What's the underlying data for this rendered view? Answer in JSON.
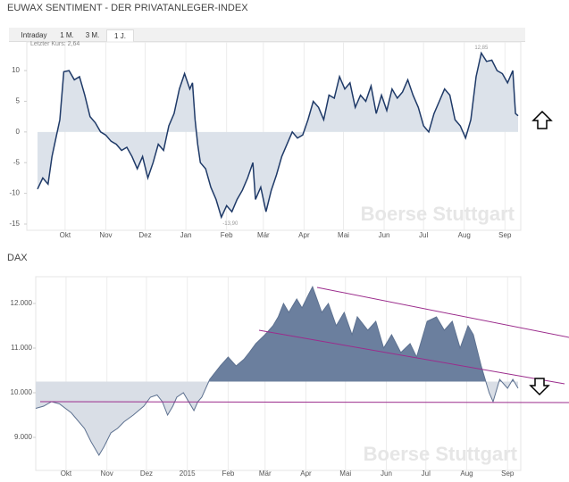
{
  "chart_data": [
    {
      "type": "area",
      "title": "EUWAX SENTIMENT - DER PRIVATANLEGER-INDEX",
      "tabs": [
        "Intraday",
        "1 M.",
        "3 M.",
        "1 J."
      ],
      "active_tab": 3,
      "last_price_label": "Letzter Kurs: 2,64",
      "max_label": "12,85",
      "min_label": "-13,90",
      "watermark": "Boerse Stuttgart",
      "x": [
        0,
        4,
        8,
        11,
        14,
        17,
        20,
        24,
        28,
        32,
        36,
        40,
        44,
        48,
        52,
        56,
        60,
        64,
        68,
        72,
        76,
        80,
        84,
        88,
        92,
        96,
        100,
        104,
        108,
        112,
        116,
        118,
        120,
        122,
        124,
        128,
        132,
        136,
        140,
        144,
        148,
        152,
        156,
        160,
        164,
        166,
        170,
        174,
        178,
        182,
        186,
        190,
        194,
        198,
        202,
        206,
        210,
        214,
        218,
        222,
        226,
        230,
        234,
        238,
        242,
        246,
        250,
        254,
        258,
        262,
        266,
        270,
        274,
        278,
        282,
        286,
        290,
        294,
        298,
        302,
        306,
        310,
        314,
        318,
        322,
        326,
        330,
        334,
        338,
        342,
        346,
        350,
        354,
        358,
        362,
        364,
        366
      ],
      "series": [
        {
          "color": "#1f3a68",
          "values": [
            -9.3,
            -7.5,
            -8.5,
            -4,
            -1,
            2,
            9.8,
            10,
            8.5,
            9,
            6,
            2.5,
            1.5,
            0,
            -0.5,
            -1.5,
            -2,
            -3,
            -2.5,
            -4,
            -6,
            -4,
            -7.5,
            -5,
            -2,
            -3,
            1,
            3,
            7,
            9.5,
            7,
            8,
            2,
            -2,
            -5,
            -6,
            -9,
            -11,
            -13.9,
            -12,
            -13,
            -11,
            -9.5,
            -7.5,
            -5,
            -11,
            -9,
            -13,
            -9.5,
            -7,
            -4,
            -2,
            0,
            -1,
            -0.5,
            2,
            5,
            4,
            2,
            6,
            5.5,
            9,
            7,
            8,
            4,
            6,
            5,
            7.5,
            3,
            6,
            3.5,
            7,
            5.5,
            6.5,
            8.5,
            6,
            4,
            1,
            0,
            3,
            5,
            7,
            6,
            2,
            1,
            -1,
            2,
            9,
            12.85,
            11.5,
            11.7,
            10,
            9.5,
            8,
            10,
            3,
            2.64
          ]
        }
      ],
      "fill_base": 0,
      "fill_colors": [
        "#dce2ea",
        "#dce2ea"
      ],
      "xlim": [
        0,
        366
      ],
      "xticks": [
        {
          "value": 21,
          "label": "Okt"
        },
        {
          "value": 52,
          "label": "Nov"
        },
        {
          "value": 82,
          "label": "Dez"
        },
        {
          "value": 113,
          "label": "Jan"
        },
        {
          "value": 144,
          "label": "Feb"
        },
        {
          "value": 172,
          "label": "Mär"
        },
        {
          "value": 203,
          "label": "Apr"
        },
        {
          "value": 233,
          "label": "Mai"
        },
        {
          "value": 264,
          "label": "Jun"
        },
        {
          "value": 294,
          "label": "Jul"
        },
        {
          "value": 325,
          "label": "Aug"
        },
        {
          "value": 356,
          "label": "Sep"
        }
      ],
      "ylim": [
        -15,
        13.5
      ],
      "yticks": [
        -15,
        -10,
        -5,
        0,
        5,
        10
      ],
      "grid": true
    },
    {
      "type": "area",
      "title": "DAX",
      "watermark": "Boerse Stuttgart",
      "x": [
        -2,
        4,
        10,
        16,
        25,
        35,
        40,
        46,
        50,
        55,
        60,
        65,
        72,
        80,
        85,
        90,
        94,
        98,
        102,
        105,
        110,
        118,
        121,
        124,
        130,
        138,
        144,
        150,
        156,
        160,
        165,
        172,
        178,
        182,
        186,
        190,
        196,
        200,
        205,
        208,
        215,
        220,
        226,
        232,
        238,
        242,
        250,
        256,
        262,
        268,
        275,
        282,
        287,
        295,
        302,
        308,
        314,
        320,
        326,
        330,
        336,
        342,
        345,
        350,
        356,
        360,
        364
      ],
      "series": [
        {
          "color": "#5d7190",
          "values": [
            9650,
            9700,
            9800,
            9750,
            9550,
            9200,
            8900,
            8600,
            8800,
            9100,
            9200,
            9350,
            9500,
            9700,
            9900,
            9950,
            9800,
            9500,
            9700,
            9900,
            10000,
            9600,
            9800,
            9900,
            10300,
            10600,
            10800,
            10600,
            10750,
            10900,
            11100,
            11300,
            11500,
            11700,
            12000,
            11800,
            12100,
            11900,
            12200,
            12374,
            11800,
            12000,
            11500,
            11800,
            11300,
            11700,
            11400,
            11600,
            11000,
            11300,
            10900,
            11100,
            10800,
            11600,
            11700,
            11400,
            11600,
            11000,
            11500,
            11300,
            10600,
            10000,
            9800,
            10300,
            10100,
            10300,
            10100
          ]
        }
      ],
      "fill_base": 10250,
      "fill_colors": [
        "#6b7f9e",
        "#d9dee6"
      ],
      "xlim": [
        -2,
        366
      ],
      "xticks": [
        {
          "value": 21,
          "label": "Okt"
        },
        {
          "value": 52,
          "label": "Nov"
        },
        {
          "value": 82,
          "label": "Dez"
        },
        {
          "value": 113,
          "label": "2015"
        },
        {
          "value": 144,
          "label": "Feb"
        },
        {
          "value": 172,
          "label": "Mär"
        },
        {
          "value": 203,
          "label": "Apr"
        },
        {
          "value": 233,
          "label": "Mai"
        },
        {
          "value": 264,
          "label": "Jun"
        },
        {
          "value": 294,
          "label": "Jul"
        },
        {
          "value": 325,
          "label": "Aug"
        },
        {
          "value": 356,
          "label": "Sep"
        }
      ],
      "ylim": [
        8260,
        12600
      ],
      "yticks": [
        {
          "value": 9000,
          "label": "9.000"
        },
        {
          "value": 10000,
          "label": "10.000"
        },
        {
          "value": 11000,
          "label": "11.000"
        },
        {
          "value": 12000,
          "label": "12.000"
        }
      ],
      "grid": true
    }
  ]
}
